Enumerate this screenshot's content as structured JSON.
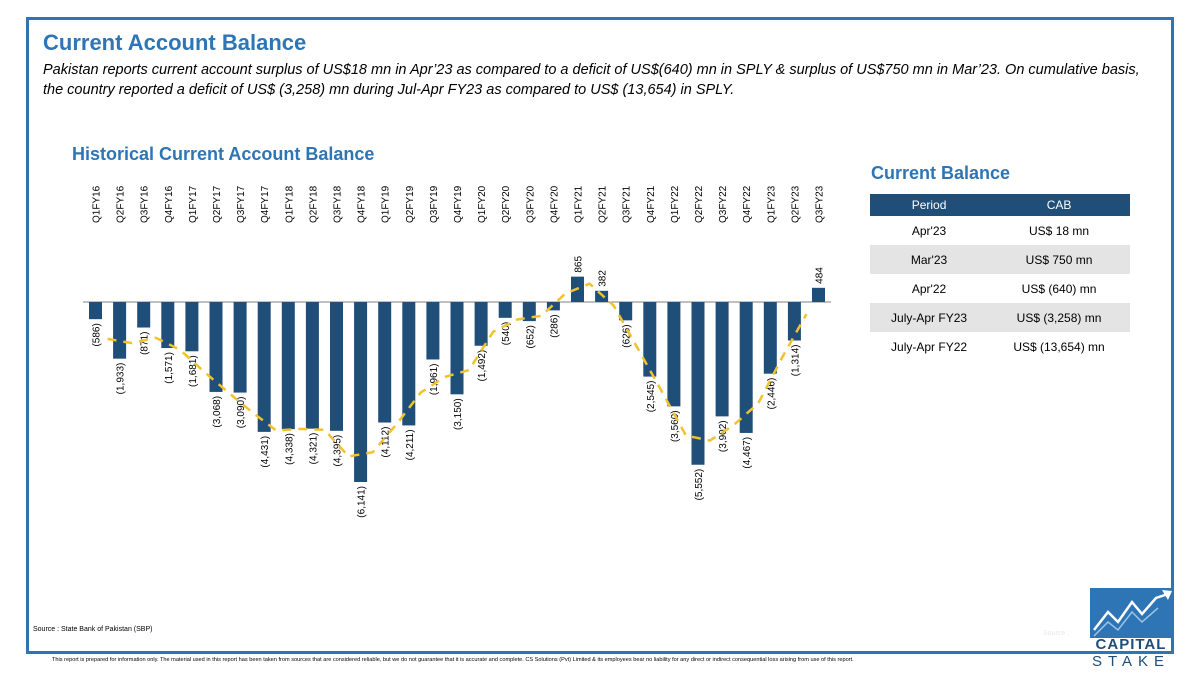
{
  "header": {
    "title": "Current Account Balance",
    "description": "Pakistan reports current account surplus of US$18 mn in Apr’23 as compared to a deficit of US$(640) mn in SPLY & surplus of US$750 mn in Mar’23. On cumulative basis, the country reported a deficit of US$ (3,258) mn during Jul-Apr FY23 as compared to US$ (13,654) in SPLY."
  },
  "chart_data": {
    "type": "bar",
    "title": "Historical Current Account Balance",
    "categories": [
      "Q1FY16",
      "Q2FY16",
      "Q3FY16",
      "Q4FY16",
      "Q1FY17",
      "Q2FY17",
      "Q3FY17",
      "Q4FY17",
      "Q1FY18",
      "Q2FY18",
      "Q3FY18",
      "Q4FY18",
      "Q1FY19",
      "Q2FY19",
      "Q3FY19",
      "Q4FY19",
      "Q1FY20",
      "Q2FY20",
      "Q3FY20",
      "Q4FY20",
      "Q1FY21",
      "Q2FY21",
      "Q3FY21",
      "Q4FY21",
      "Q1FY22",
      "Q2FY22",
      "Q3FY22",
      "Q4FY22",
      "Q1FY23",
      "Q2FY23",
      "Q3FY23"
    ],
    "values": [
      -586,
      -1933,
      -871,
      -1571,
      -1681,
      -3068,
      -3090,
      -4431,
      -4338,
      -4321,
      -4395,
      -6141,
      -4112,
      -4211,
      -1961,
      -3150,
      -1492,
      -540,
      -652,
      -286,
      865,
      382,
      -626,
      -2545,
      -3560,
      -5552,
      -3902,
      -4467,
      -2446,
      -1314,
      484
    ],
    "value_labels": [
      "(586)",
      "(1,933)",
      "(871)",
      "(1,571)",
      "(1,681)",
      "(3,068)",
      "(3,090)",
      "(4,431)",
      "(4,338)",
      "(4,321)",
      "(4,395)",
      "(6,141)",
      "(4,112)",
      "(4,211)",
      "(1,961)",
      "(3,150)",
      "(1,492)",
      "(540)",
      "(652)",
      "(286)",
      "865",
      "382",
      "(626)",
      "(2,545)",
      "(3,560)",
      "(5,552)",
      "(3,902)",
      "(4,467)",
      "(2,446)",
      "(1,314)",
      "484"
    ],
    "trendline": "dashed-moving-average",
    "ylim": [
      -6300,
      900
    ],
    "grid": false,
    "colors": {
      "bar": "#1f4e79",
      "trend": "#f2c12e",
      "axis": "#808080"
    }
  },
  "table": {
    "title": "Current Balance",
    "headers": [
      "Period",
      "CAB"
    ],
    "rows": [
      [
        "Apr'23",
        "US$ 18 mn"
      ],
      [
        "Mar'23",
        "US$ 750 mn"
      ],
      [
        "Apr'22",
        "US$ (640) mn"
      ],
      [
        "July-Apr FY23",
        "US$ (3,258) mn"
      ],
      [
        "July-Apr FY22",
        "US$ (13,654) mn"
      ]
    ]
  },
  "footer": {
    "source": "Source : State Bank of Pakistan (SBP)",
    "disclaimer": "This report is prepared for information only. The material used in this report has been taken from sources that are considered reliable, but we do not guarantee that it is accurate and complete. CS Solutions (Pvt) Limited & its employees bear no liability for any direct or indirect consequential loss arising from use of this report.",
    "faint_text": "Source :"
  },
  "logo": {
    "line1": "CAPITAL",
    "line2": "STAKE"
  },
  "colors": {
    "brand": "#2e75b6",
    "navy": "#1f4e79"
  }
}
